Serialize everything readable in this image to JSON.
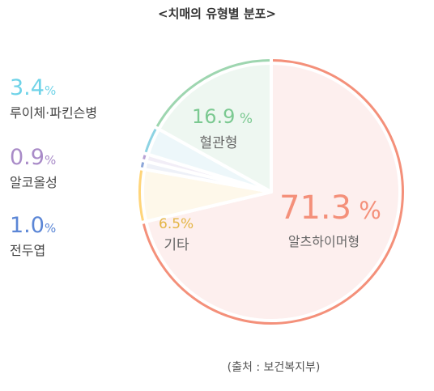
{
  "chart_data": {
    "type": "pie",
    "title": "<치매의 유형별 분포>",
    "source": "(출처 : 보건복지부)",
    "unit": "%",
    "slices": [
      {
        "name": "알츠하이머형",
        "value": 71.3,
        "value_text": "71.3",
        "unit_text": "%",
        "color": "#F4907A",
        "fill": "#FDEFEE",
        "label_color": "#F4907A"
      },
      {
        "name": "기타",
        "value": 6.5,
        "value_text": "6.5",
        "unit_text": "%",
        "color": "#FFD57A",
        "fill": "#FEF8EA",
        "label_color": "#E4B545"
      },
      {
        "name": "전두엽",
        "value": 1.0,
        "value_text": "1.0",
        "unit_text": "%",
        "color": "#8CA6D9",
        "fill": "#EEF1F8",
        "label_color": "#5B86D6"
      },
      {
        "name": "알코올성",
        "value": 0.9,
        "value_text": "0.9",
        "unit_text": "%",
        "color": "#B8A2D4",
        "fill": "#F2EEF7",
        "label_color": "#A98BC8"
      },
      {
        "name": "루이체·파킨슨병",
        "value": 3.4,
        "value_text": "3.4",
        "unit_text": "%",
        "color": "#8DD3E3",
        "fill": "#EDF7FA",
        "label_color": "#6FD3E8"
      },
      {
        "name": "혈관형",
        "value": 16.9,
        "value_text": "16.9",
        "unit_text": "%",
        "color": "#9ED6B0",
        "fill": "#EEF7F1",
        "label_color": "#7BC991"
      }
    ]
  }
}
